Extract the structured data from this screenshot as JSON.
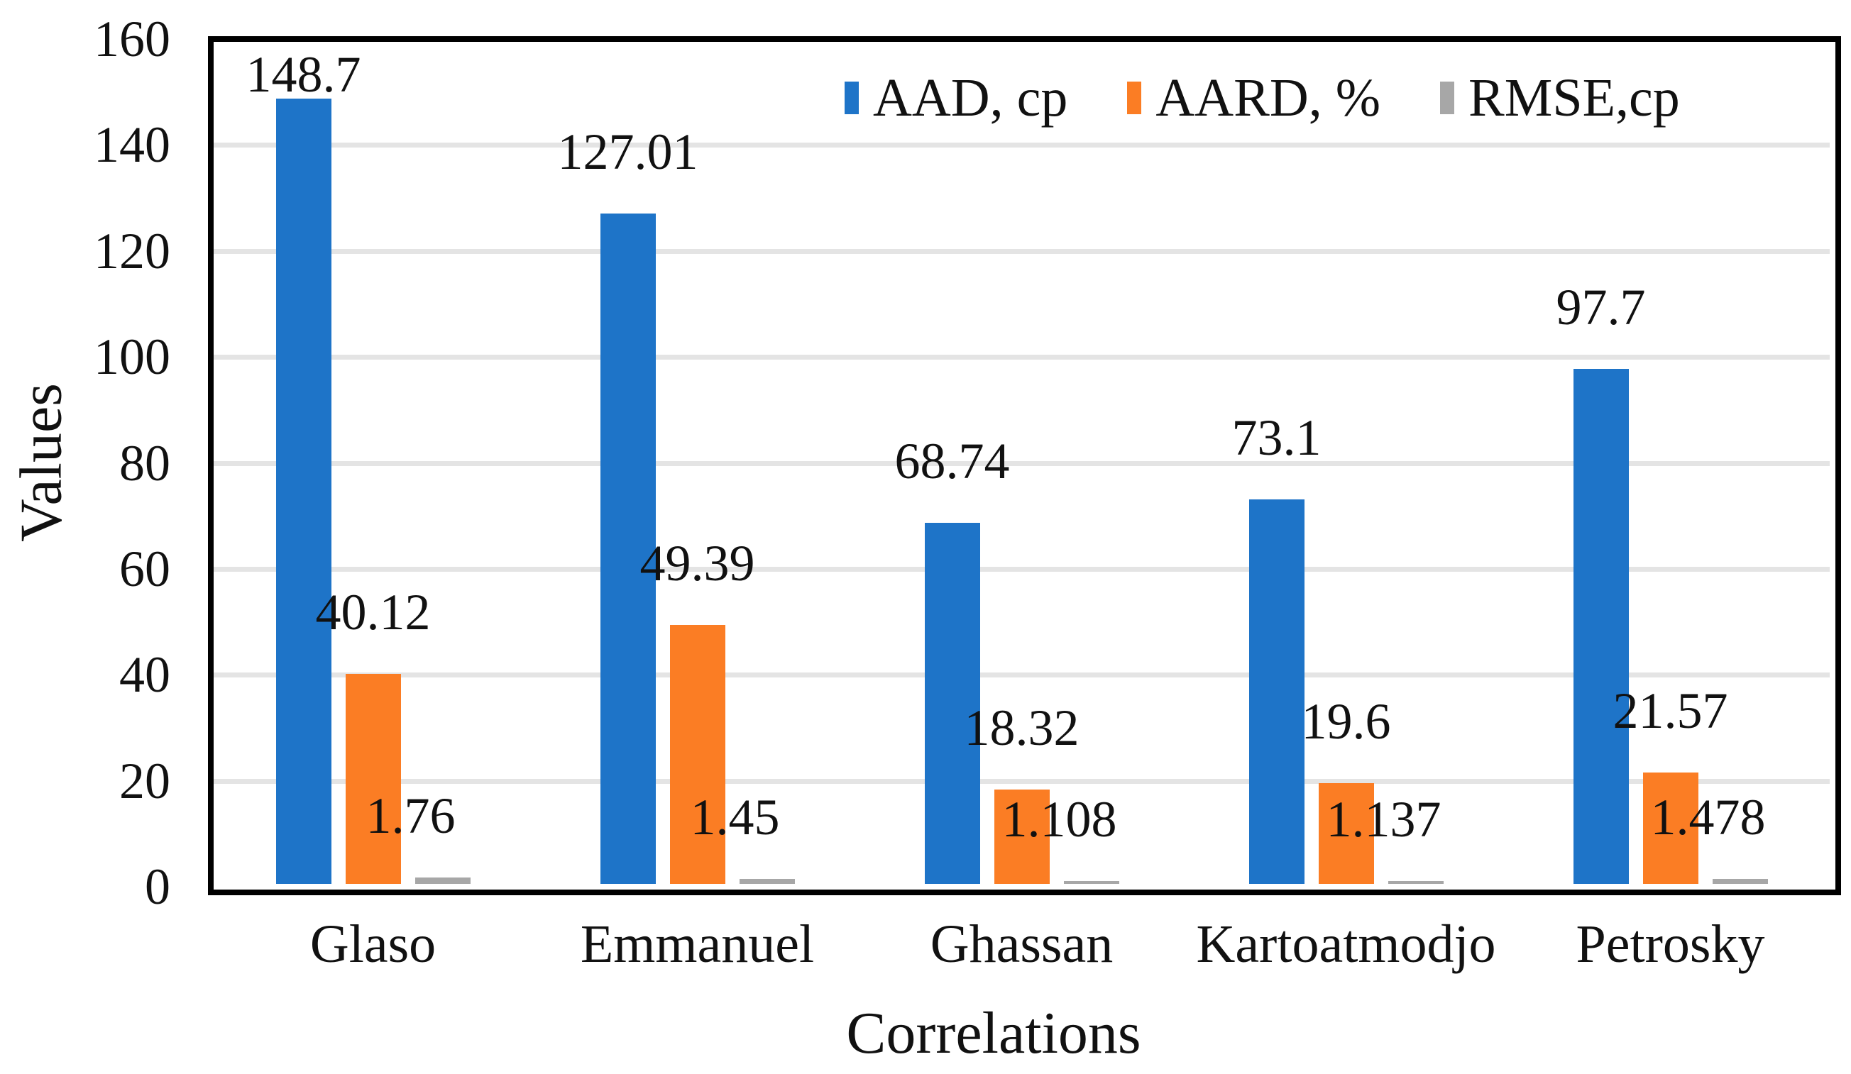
{
  "chart_data": {
    "type": "bar",
    "title": "",
    "xlabel": "Correlations",
    "ylabel": "Values",
    "ylim": [
      0,
      160
    ],
    "ytick_step": 20,
    "yticks": [
      "0",
      "20",
      "40",
      "60",
      "80",
      "100",
      "120",
      "140",
      "160"
    ],
    "grid": "horizontal",
    "legend_position": "top-right-inside",
    "categories": [
      "Glaso",
      "Emmanuel",
      "Ghassan",
      "Kartoatmodjo",
      "Petrosky"
    ],
    "series": [
      {
        "name": "AAD, cp",
        "color": "#1E74C8",
        "values": [
          148.7,
          127.01,
          68.74,
          73.1,
          97.7
        ],
        "labels": [
          "148.7",
          "127.01",
          "68.74",
          "73.1",
          "97.7"
        ]
      },
      {
        "name": "AARD, %",
        "color": "#FB7D24",
        "values": [
          40.12,
          49.39,
          18.32,
          19.6,
          21.57
        ],
        "labels": [
          "40.12",
          "49.39",
          "18.32",
          "19.6",
          "21.57"
        ]
      },
      {
        "name": "RMSE,cp",
        "color": "#A7A7A7",
        "values": [
          1.76,
          1.45,
          1.108,
          1.137,
          1.478
        ],
        "labels": [
          "1.76",
          "1.45",
          "1.108",
          "1.137",
          "1.478"
        ]
      }
    ],
    "colors": {
      "gridline": "#E4E4E4",
      "axis_border": "#000000",
      "text": "#111111",
      "background": "#FFFFFF"
    }
  }
}
